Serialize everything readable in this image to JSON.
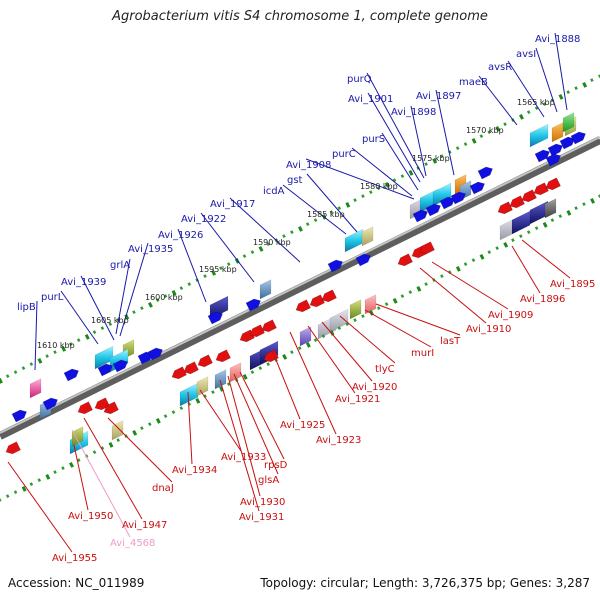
{
  "title": "Agrobacterium vitis S4 chromosome 1, complete genome",
  "accession": "Accession: NC_011989",
  "summary": "Topology: circular; Length: 3,726,375 bp; Genes: 3,287",
  "ruler_ticks": [
    "1565 kbp",
    "1570 kbp",
    "1575 kbp",
    "1580 kbp",
    "1585 kbp",
    "1590 kbp",
    "1595 kbp",
    "1600 kbp",
    "1605 kbp",
    "1610 kbp"
  ],
  "colors": {
    "forward_label": "#1a1aa8",
    "reverse_label": "#c81010",
    "pseudo_label": "#f09ac8",
    "backbone": "#8a8a8a"
  },
  "forward_genes": [
    "lipB",
    "purL",
    "Avi_1939",
    "grlA",
    "Avi_1935",
    "Avi_1926",
    "Avi_1922",
    "Avi_1917",
    "icdA",
    "gst",
    "Avi_1908",
    "purC",
    "purS",
    "Avi_1901",
    "purQ",
    "Avi_1898",
    "Avi_1897",
    "maeB",
    "avsR",
    "avsI",
    "Avi_1888"
  ],
  "reverse_genes": [
    "Avi_1955",
    "Avi_1950",
    "Avi_4568",
    "Avi_1947",
    "dnaJ",
    "Avi_1934",
    "Avi_1933",
    "Avi_1931",
    "Avi_1930",
    "glsA",
    "rpsD",
    "Avi_1925",
    "Avi_1923",
    "Avi_1921",
    "Avi_1920",
    "tlyC",
    "murI",
    "lasT",
    "Avi_1910",
    "Avi_1909",
    "Avi_1896",
    "Avi_1895"
  ]
}
